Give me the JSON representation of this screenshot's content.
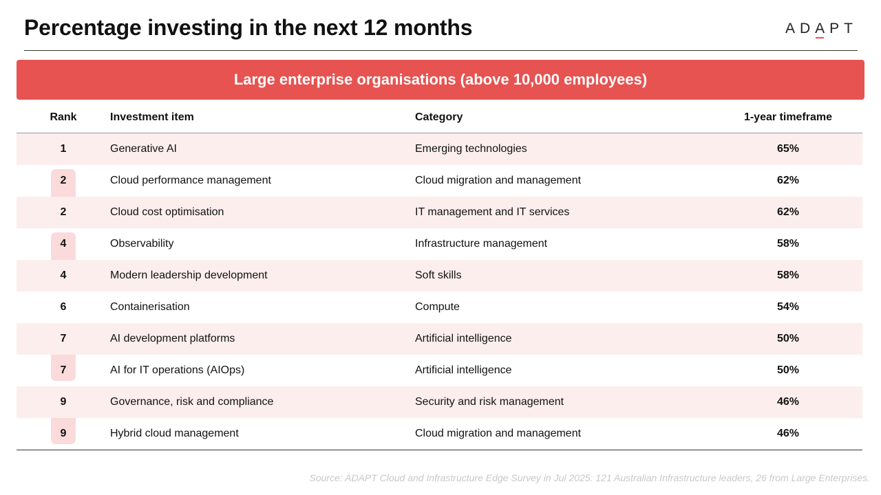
{
  "header": {
    "title": "Percentage investing in the next 12 months",
    "logo_text_before": "AD",
    "logo_text_mark": "A",
    "logo_text_after": "PT"
  },
  "banner": {
    "text": "Large enterprise organisations (above 10,000 employees)"
  },
  "table": {
    "headers": {
      "rank": "Rank",
      "item": "Investment item",
      "category": "Category",
      "timeframe": "1-year timeframe"
    },
    "rows": [
      {
        "rank": "1",
        "item": "Generative AI",
        "category": "Emerging technologies",
        "pct": "65%"
      },
      {
        "rank": "2",
        "item": "Cloud performance management",
        "category": "Cloud migration and management",
        "pct": "62%"
      },
      {
        "rank": "2",
        "item": "Cloud cost optimisation",
        "category": "IT management and IT services",
        "pct": "62%"
      },
      {
        "rank": "4",
        "item": "Observability",
        "category": "Infrastructure management",
        "pct": "58%"
      },
      {
        "rank": "4",
        "item": "Modern leadership development",
        "category": "Soft skills",
        "pct": "58%"
      },
      {
        "rank": "6",
        "item": "Containerisation",
        "category": "Compute",
        "pct": "54%"
      },
      {
        "rank": "7",
        "item": "AI development platforms",
        "category": "Artificial intelligence",
        "pct": "50%"
      },
      {
        "rank": "7",
        "item": "AI for IT operations (AIOps)",
        "category": "Artificial intelligence",
        "pct": "50%"
      },
      {
        "rank": "9",
        "item": "Governance, risk and compliance",
        "category": "Security and risk management",
        "pct": "46%"
      },
      {
        "rank": "9",
        "item": "Hybrid cloud management",
        "category": "Cloud migration and management",
        "pct": "46%"
      }
    ]
  },
  "source": "Source: ADAPT Cloud and Infrastructure Edge Survey in Jul 2025: 121 Australian Infrastructure leaders, 26 from Large Enterprises.",
  "colors": {
    "accent": "#e65350",
    "row_shade": "#fdeeee",
    "rank_highlight": "#fadada"
  }
}
